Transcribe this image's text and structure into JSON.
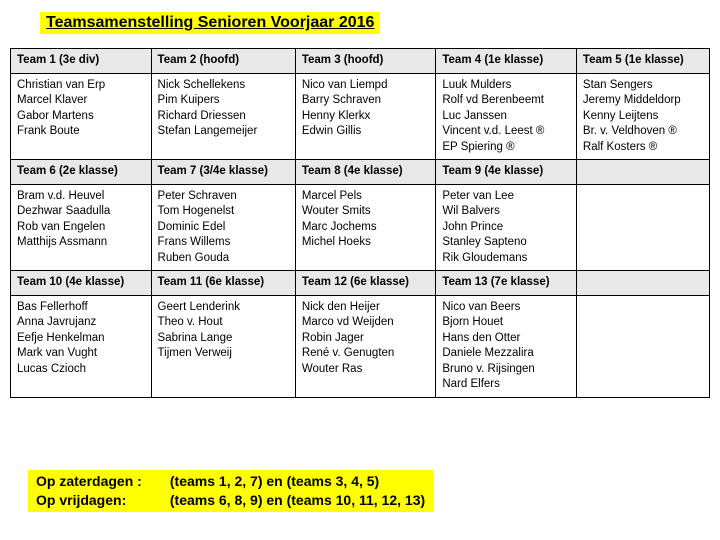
{
  "title": "Teamsamenstelling Senioren Voorjaar 2016",
  "colors": {
    "highlight": "#ffff00",
    "header_bg": "#e8e8e8",
    "border": "#000000",
    "text": "#000000",
    "background": "#ffffff"
  },
  "table": {
    "rows": [
      {
        "type": "header",
        "cells": [
          "Team 1  (3e div)",
          "Team 2  (hoofd)",
          "Team 3 (hoofd)",
          "Team 4 (1e klasse)",
          "Team 5 (1e klasse)"
        ]
      },
      {
        "type": "data",
        "cells": [
          "Christian van Erp\nMarcel Klaver\nGabor Martens\nFrank Boute",
          "Nick Schellekens\nPim Kuipers\nRichard Driessen\nStefan Langemeijer",
          "Nico van Liempd\nBarry Schraven\nHenny Klerkx\nEdwin Gillis",
          "Luuk Mulders\nRolf vd Berenbeemt\nLuc Janssen\nVincent v.d. Leest ®\nEP Spiering ®",
          "Stan Sengers\nJeremy Middeldorp\nKenny Leijtens\nBr. v. Veldhoven ®\nRalf Kosters ®"
        ]
      },
      {
        "type": "header",
        "cells": [
          "Team 6 (2e klasse)",
          "Team 7 (3/4e klasse)",
          "Team 8 (4e klasse)",
          "Team 9 (4e klasse)",
          ""
        ]
      },
      {
        "type": "data",
        "cells": [
          "Bram v.d. Heuvel\nDezhwar Saadulla\nRob van Engelen\nMatthijs Assmann",
          "Peter Schraven\nTom Hogenelst\nDominic Edel\nFrans Willems\nRuben Gouda",
          "Marcel Pels\nWouter Smits\nMarc Jochems\nMichel Hoeks",
          "Peter van Lee\nWil Balvers\nJohn Prince\nStanley Sapteno\nRik Gloudemans",
          ""
        ]
      },
      {
        "type": "header",
        "cells": [
          "Team 10 (4e klasse)",
          "Team 11 (6e klasse)",
          "Team 12 (6e klasse)",
          "Team 13 (7e klasse)",
          ""
        ]
      },
      {
        "type": "data",
        "cells": [
          "Bas Fellerhoff\nAnna Javrujanz\nEefje Henkelman\nMark van Vught\nLucas Czioch",
          "Geert Lenderink\nTheo v. Hout\nSabrina Lange\nTijmen Verweij",
          "Nick den Heijer\nMarco vd Weijden\nRobin Jager\nRené v. Genugten\nWouter Ras",
          "Nico van Beers\nBjorn Houet\nHans den Otter\nDaniele Mezzalira\nBruno v. Rijsingen\nNard Elfers",
          ""
        ]
      }
    ]
  },
  "footer": {
    "line1_label": "Op zaterdagen :",
    "line1_text": "(teams 1, 2, 7)  en  (teams 3, 4, 5)",
    "line2_label": "Op vrijdagen:",
    "line2_text": "(teams 6, 8, 9) en (teams 10, 11, 12, 13)"
  }
}
